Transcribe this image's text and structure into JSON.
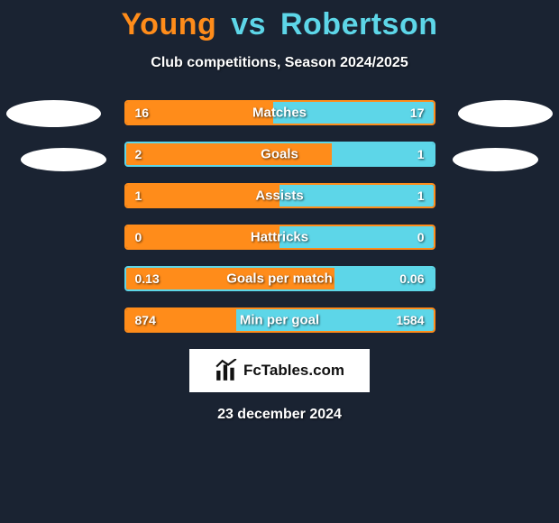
{
  "title": {
    "player1": "Young",
    "vs": "vs",
    "player2": "Robertson",
    "player1_color": "#ff8c1a",
    "player2_color": "#5dd6e8"
  },
  "subtitle": "Club competitions, Season 2024/2025",
  "background_color": "#1a2332",
  "bar_border_color_left": "#ff8c1a",
  "bar_border_color_right": "#5dd6e8",
  "bars": [
    {
      "label": "Matches",
      "left_val": "16",
      "right_val": "17",
      "left_pct": 48,
      "right_pct": 52,
      "border": "#ff8c1a"
    },
    {
      "label": "Goals",
      "left_val": "2",
      "right_val": "1",
      "left_pct": 67,
      "right_pct": 33,
      "border": "#5dd6e8"
    },
    {
      "label": "Assists",
      "left_val": "1",
      "right_val": "1",
      "left_pct": 50,
      "right_pct": 50,
      "border": "#ff8c1a"
    },
    {
      "label": "Hattricks",
      "left_val": "0",
      "right_val": "0",
      "left_pct": 50,
      "right_pct": 50,
      "border": "#ff8c1a"
    },
    {
      "label": "Goals per match",
      "left_val": "0.13",
      "right_val": "0.06",
      "left_pct": 68,
      "right_pct": 32,
      "border": "#5dd6e8"
    },
    {
      "label": "Min per goal",
      "left_val": "874",
      "right_val": "1584",
      "left_pct": 36,
      "right_pct": 64,
      "border": "#ff8c1a"
    }
  ],
  "brand": "FcTables.com",
  "date": "23 december 2024",
  "ellipses_color": "#ffffff"
}
